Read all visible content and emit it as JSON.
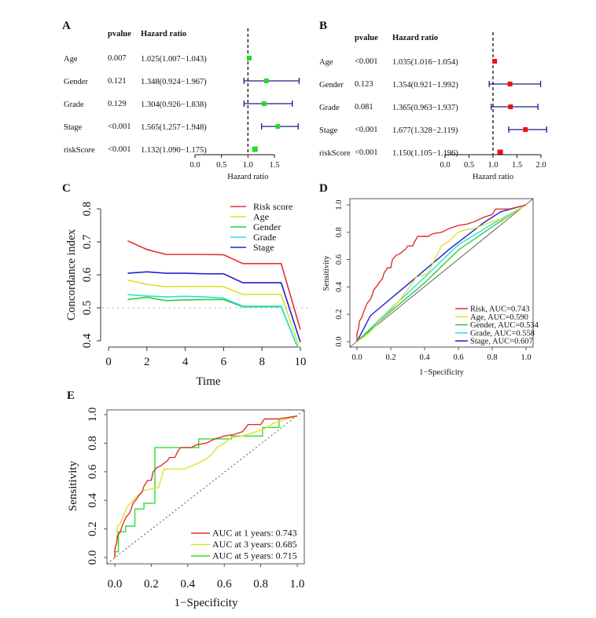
{
  "chart_data": [
    {
      "panel": "A",
      "type": "forest",
      "columns": {
        "pvalue": "pvalue",
        "hr": "Hazard ratio"
      },
      "xlabel": "Hazard ratio",
      "xlim": [
        0.0,
        1.5
      ],
      "xticks": [
        "0.0",
        "0.5",
        "1.0",
        "1.5"
      ],
      "ref_line": 1.0,
      "marker_color": "#22dd22",
      "ci_color": "#1a1a8c",
      "rows": [
        {
          "name": "Age",
          "pvalue": "0.007",
          "hr_text": "1.025(1.007−1.043)",
          "hr": 1.025,
          "lo": 1.007,
          "hi": 1.043
        },
        {
          "name": "Gender",
          "pvalue": "0.121",
          "hr_text": "1.348(0.924−1.967)",
          "hr": 1.348,
          "lo": 0.924,
          "hi": 1.967
        },
        {
          "name": "Grade",
          "pvalue": "0.129",
          "hr_text": "1.304(0.926−1.838)",
          "hr": 1.304,
          "lo": 0.926,
          "hi": 1.838
        },
        {
          "name": "Stage",
          "pvalue": "<0.001",
          "hr_text": "1.565(1.257−1.948)",
          "hr": 1.565,
          "lo": 1.257,
          "hi": 1.948
        },
        {
          "name": "riskScore",
          "pvalue": "<0.001",
          "hr_text": "1.132(1.090−1.175)",
          "hr": 1.132,
          "lo": 1.09,
          "hi": 1.175
        }
      ]
    },
    {
      "panel": "B",
      "type": "forest",
      "columns": {
        "pvalue": "pvalue",
        "hr": "Hazard ratio"
      },
      "xlabel": "Hazard ratio",
      "xlim": [
        0.0,
        2.0
      ],
      "xticks": [
        "0.0",
        "0.5",
        "1.0",
        "1.5",
        "2.0"
      ],
      "ref_line": 1.0,
      "marker_color": "#ee1111",
      "ci_color": "#1a1a8c",
      "rows": [
        {
          "name": "Age",
          "pvalue": "<0.001",
          "hr_text": "1.035(1.016−1.054)",
          "hr": 1.035,
          "lo": 1.016,
          "hi": 1.054
        },
        {
          "name": "Gender",
          "pvalue": "0.123",
          "hr_text": "1.354(0.921−1.992)",
          "hr": 1.354,
          "lo": 0.921,
          "hi": 1.992
        },
        {
          "name": "Grade",
          "pvalue": "0.081",
          "hr_text": "1.365(0.963−1.937)",
          "hr": 1.365,
          "lo": 0.963,
          "hi": 1.937
        },
        {
          "name": "Stage",
          "pvalue": "<0.001",
          "hr_text": "1.677(1.328−2.119)",
          "hr": 1.677,
          "lo": 1.328,
          "hi": 2.119
        },
        {
          "name": "riskScore",
          "pvalue": "<0.001",
          "hr_text": "1.150(1.105−1.196)",
          "hr": 1.15,
          "lo": 1.105,
          "hi": 1.196
        }
      ]
    },
    {
      "panel": "C",
      "type": "line",
      "xlabel": "Time",
      "ylabel": "Concordance index",
      "xlim": [
        0,
        10
      ],
      "ylim": [
        0.4,
        0.8
      ],
      "xticks": [
        "0",
        "2",
        "4",
        "6",
        "8",
        "10"
      ],
      "yticks": [
        "0.4",
        "0.5",
        "0.6",
        "0.7",
        "0.8"
      ],
      "ref_line": 0.5,
      "legend_position": "top-right",
      "x": [
        1,
        2,
        3,
        4,
        5,
        6,
        7,
        8,
        9,
        10
      ],
      "series": [
        {
          "name": "Risk score",
          "color": "#e03030",
          "values": [
            0.703,
            0.677,
            0.662,
            0.662,
            0.662,
            0.661,
            0.634,
            0.634,
            0.634,
            0.434
          ]
        },
        {
          "name": "Age",
          "color": "#e0e030",
          "values": [
            0.584,
            0.571,
            0.564,
            0.565,
            0.565,
            0.564,
            0.541,
            0.541,
            0.541,
            0.37
          ]
        },
        {
          "name": "Gender",
          "color": "#30cc30",
          "values": [
            0.525,
            0.532,
            0.522,
            0.524,
            0.525,
            0.525,
            0.503,
            0.503,
            0.503,
            0.36
          ]
        },
        {
          "name": "Grade",
          "color": "#30dddd",
          "values": [
            0.54,
            0.536,
            0.533,
            0.535,
            0.533,
            0.529,
            0.505,
            0.505,
            0.505,
            0.36
          ]
        },
        {
          "name": "Stage",
          "color": "#2020cc",
          "values": [
            0.605,
            0.609,
            0.605,
            0.605,
            0.603,
            0.603,
            0.576,
            0.576,
            0.576,
            0.396
          ]
        }
      ]
    },
    {
      "panel": "D",
      "type": "line",
      "subtype": "roc",
      "xlabel": "1−Specificity",
      "ylabel": "Sensitivity",
      "xlim": [
        0,
        1
      ],
      "ylim": [
        0,
        1
      ],
      "xticks": [
        "0.0",
        "0.2",
        "0.4",
        "0.6",
        "0.8",
        "1.0"
      ],
      "yticks": [
        "0.0",
        "0.2",
        "0.4",
        "0.6",
        "0.8",
        "1.0"
      ],
      "legend_position": "bottom-right",
      "series": [
        {
          "name": "Risk, AUC=0.743",
          "color": "#e03030",
          "points": [
            [
              0,
              0
            ],
            [
              0,
              0.06
            ],
            [
              0.01,
              0.1
            ],
            [
              0.015,
              0.15
            ],
            [
              0.03,
              0.18
            ],
            [
              0.04,
              0.22
            ],
            [
              0.05,
              0.25
            ],
            [
              0.06,
              0.28
            ],
            [
              0.08,
              0.31
            ],
            [
              0.09,
              0.34
            ],
            [
              0.1,
              0.38
            ],
            [
              0.12,
              0.41
            ],
            [
              0.13,
              0.43
            ],
            [
              0.15,
              0.46
            ],
            [
              0.16,
              0.5
            ],
            [
              0.18,
              0.54
            ],
            [
              0.2,
              0.54
            ],
            [
              0.21,
              0.6
            ],
            [
              0.23,
              0.63
            ],
            [
              0.25,
              0.64
            ],
            [
              0.27,
              0.66
            ],
            [
              0.29,
              0.68
            ],
            [
              0.3,
              0.7
            ],
            [
              0.33,
              0.7
            ],
            [
              0.34,
              0.73
            ],
            [
              0.36,
              0.77
            ],
            [
              0.42,
              0.77
            ],
            [
              0.45,
              0.79
            ],
            [
              0.5,
              0.8
            ],
            [
              0.55,
              0.83
            ],
            [
              0.6,
              0.85
            ],
            [
              0.65,
              0.86
            ],
            [
              0.7,
              0.88
            ],
            [
              0.75,
              0.91
            ],
            [
              0.8,
              0.93
            ],
            [
              0.82,
              0.97
            ],
            [
              0.9,
              0.97
            ],
            [
              1,
              1
            ]
          ]
        },
        {
          "name": "Age, AUC=0.590",
          "color": "#e0e030",
          "points": [
            [
              0,
              0
            ],
            [
              0.05,
              0.04
            ],
            [
              0.1,
              0.1
            ],
            [
              0.15,
              0.17
            ],
            [
              0.2,
              0.23
            ],
            [
              0.25,
              0.3
            ],
            [
              0.3,
              0.38
            ],
            [
              0.35,
              0.47
            ],
            [
              0.42,
              0.5
            ],
            [
              0.46,
              0.6
            ],
            [
              0.5,
              0.7
            ],
            [
              0.55,
              0.74
            ],
            [
              0.6,
              0.8
            ],
            [
              0.65,
              0.82
            ],
            [
              0.7,
              0.83
            ],
            [
              0.8,
              0.88
            ],
            [
              0.87,
              0.9
            ],
            [
              1,
              1
            ]
          ]
        },
        {
          "name": "Gender, AUC=0.534",
          "color": "#30cc30",
          "points": [
            [
              0,
              0
            ],
            [
              0.2,
              0.22
            ],
            [
              0.4,
              0.43
            ],
            [
              0.6,
              0.67
            ],
            [
              0.8,
              0.84
            ],
            [
              1,
              1
            ]
          ]
        },
        {
          "name": "Grade, AUC=0.558",
          "color": "#30dddd",
          "points": [
            [
              0,
              0
            ],
            [
              0.2,
              0.24
            ],
            [
              0.4,
              0.47
            ],
            [
              0.6,
              0.71
            ],
            [
              0.8,
              0.86
            ],
            [
              1,
              1
            ]
          ]
        },
        {
          "name": "Stage, AUC=0.607",
          "color": "#2020cc",
          "points": [
            [
              0,
              0
            ],
            [
              0.08,
              0.19
            ],
            [
              0.35,
              0.47
            ],
            [
              0.55,
              0.68
            ],
            [
              0.75,
              0.87
            ],
            [
              0.85,
              0.95
            ],
            [
              1,
              1
            ]
          ]
        }
      ]
    },
    {
      "panel": "E",
      "type": "line",
      "subtype": "roc",
      "xlabel": "1−Specificity",
      "ylabel": "Sensitivity",
      "xlim": [
        0,
        1
      ],
      "ylim": [
        0,
        1
      ],
      "xticks": [
        "0.0",
        "0.2",
        "0.4",
        "0.6",
        "0.8",
        "1.0"
      ],
      "yticks": [
        "0.0",
        "0.2",
        "0.4",
        "0.6",
        "0.8",
        "1.0"
      ],
      "legend_position": "bottom-right",
      "series": [
        {
          "name": "AUC at 1 years: 0.743",
          "color": "#e03030",
          "points": [
            [
              0,
              0
            ],
            [
              0,
              0.06
            ],
            [
              0.01,
              0.1
            ],
            [
              0.015,
              0.15
            ],
            [
              0.03,
              0.18
            ],
            [
              0.04,
              0.22
            ],
            [
              0.05,
              0.25
            ],
            [
              0.06,
              0.28
            ],
            [
              0.08,
              0.31
            ],
            [
              0.09,
              0.34
            ],
            [
              0.1,
              0.38
            ],
            [
              0.12,
              0.41
            ],
            [
              0.13,
              0.43
            ],
            [
              0.15,
              0.46
            ],
            [
              0.16,
              0.5
            ],
            [
              0.18,
              0.54
            ],
            [
              0.2,
              0.54
            ],
            [
              0.21,
              0.6
            ],
            [
              0.23,
              0.63
            ],
            [
              0.25,
              0.64
            ],
            [
              0.27,
              0.66
            ],
            [
              0.29,
              0.68
            ],
            [
              0.3,
              0.7
            ],
            [
              0.33,
              0.7
            ],
            [
              0.34,
              0.73
            ],
            [
              0.36,
              0.77
            ],
            [
              0.42,
              0.77
            ],
            [
              0.45,
              0.79
            ],
            [
              0.5,
              0.8
            ],
            [
              0.55,
              0.83
            ],
            [
              0.6,
              0.85
            ],
            [
              0.65,
              0.86
            ],
            [
              0.7,
              0.88
            ],
            [
              0.73,
              0.93
            ],
            [
              0.8,
              0.93
            ],
            [
              0.82,
              0.97
            ],
            [
              0.9,
              0.97
            ],
            [
              1,
              0.99
            ]
          ]
        },
        {
          "name": "AUC at 3 years: 0.685",
          "color": "#e0e030",
          "points": [
            [
              0,
              0
            ],
            [
              0,
              0.05
            ],
            [
              0.01,
              0.1
            ],
            [
              0.015,
              0.22
            ],
            [
              0.03,
              0.24
            ],
            [
              0.04,
              0.27
            ],
            [
              0.05,
              0.3
            ],
            [
              0.07,
              0.36
            ],
            [
              0.1,
              0.4
            ],
            [
              0.13,
              0.44
            ],
            [
              0.16,
              0.47
            ],
            [
              0.2,
              0.48
            ],
            [
              0.24,
              0.49
            ],
            [
              0.27,
              0.62
            ],
            [
              0.38,
              0.62
            ],
            [
              0.44,
              0.65
            ],
            [
              0.5,
              0.69
            ],
            [
              0.53,
              0.72
            ],
            [
              0.56,
              0.77
            ],
            [
              0.6,
              0.8
            ],
            [
              0.64,
              0.84
            ],
            [
              0.7,
              0.85
            ],
            [
              0.75,
              0.87
            ],
            [
              0.82,
              0.9
            ],
            [
              0.87,
              0.94
            ],
            [
              0.92,
              0.96
            ],
            [
              1,
              0.99
            ]
          ]
        },
        {
          "name": "AUC at 5 years: 0.715",
          "color": "#30dd30",
          "points": [
            [
              0,
              0
            ],
            [
              0,
              0.04
            ],
            [
              0.02,
              0.04
            ],
            [
              0.02,
              0.18
            ],
            [
              0.06,
              0.18
            ],
            [
              0.06,
              0.22
            ],
            [
              0.11,
              0.22
            ],
            [
              0.11,
              0.34
            ],
            [
              0.16,
              0.34
            ],
            [
              0.16,
              0.38
            ],
            [
              0.22,
              0.38
            ],
            [
              0.22,
              0.77
            ],
            [
              0.46,
              0.77
            ],
            [
              0.46,
              0.83
            ],
            [
              0.64,
              0.83
            ],
            [
              0.64,
              0.85
            ],
            [
              0.81,
              0.85
            ],
            [
              0.81,
              0.91
            ],
            [
              0.9,
              0.91
            ],
            [
              0.9,
              0.97
            ],
            [
              1,
              0.99
            ]
          ]
        }
      ]
    }
  ]
}
